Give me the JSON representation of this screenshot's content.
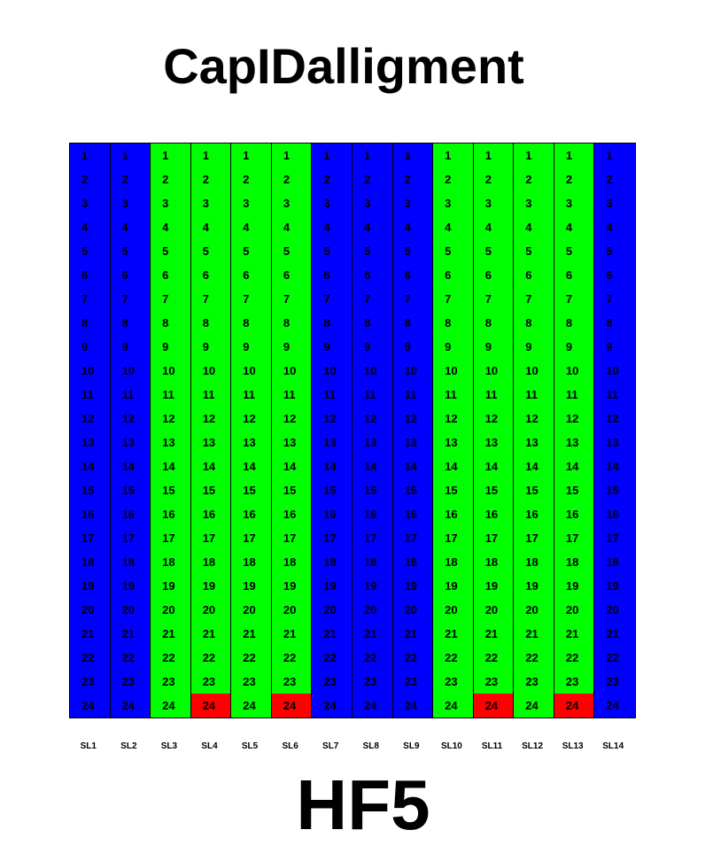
{
  "title": "CapIDalligment",
  "footer_label": "HF5",
  "colors": {
    "blue": "#0000ff",
    "green": "#00ff00",
    "red": "#ff0000",
    "border": "#000000"
  },
  "chart_data": {
    "type": "heatmap",
    "title": "CapIDalligment",
    "columns": [
      "SL1",
      "SL2",
      "SL3",
      "SL4",
      "SL5",
      "SL6",
      "SL7",
      "SL8",
      "SL9",
      "SL10",
      "SL11",
      "SL12",
      "SL13",
      "SL14"
    ],
    "rows": [
      1,
      2,
      3,
      4,
      5,
      6,
      7,
      8,
      9,
      10,
      11,
      12,
      13,
      14,
      15,
      16,
      17,
      18,
      19,
      20,
      21,
      22,
      23,
      24
    ],
    "column_colors": [
      "blue",
      "blue",
      "green",
      "green",
      "green",
      "green",
      "blue",
      "blue",
      "blue",
      "green",
      "green",
      "green",
      "green",
      "blue"
    ],
    "red_cells": [
      {
        "column": "SL4",
        "row": 24
      },
      {
        "column": "SL6",
        "row": 24
      },
      {
        "column": "SL11",
        "row": 24
      },
      {
        "column": "SL13",
        "row": 24
      }
    ],
    "grid": true
  }
}
